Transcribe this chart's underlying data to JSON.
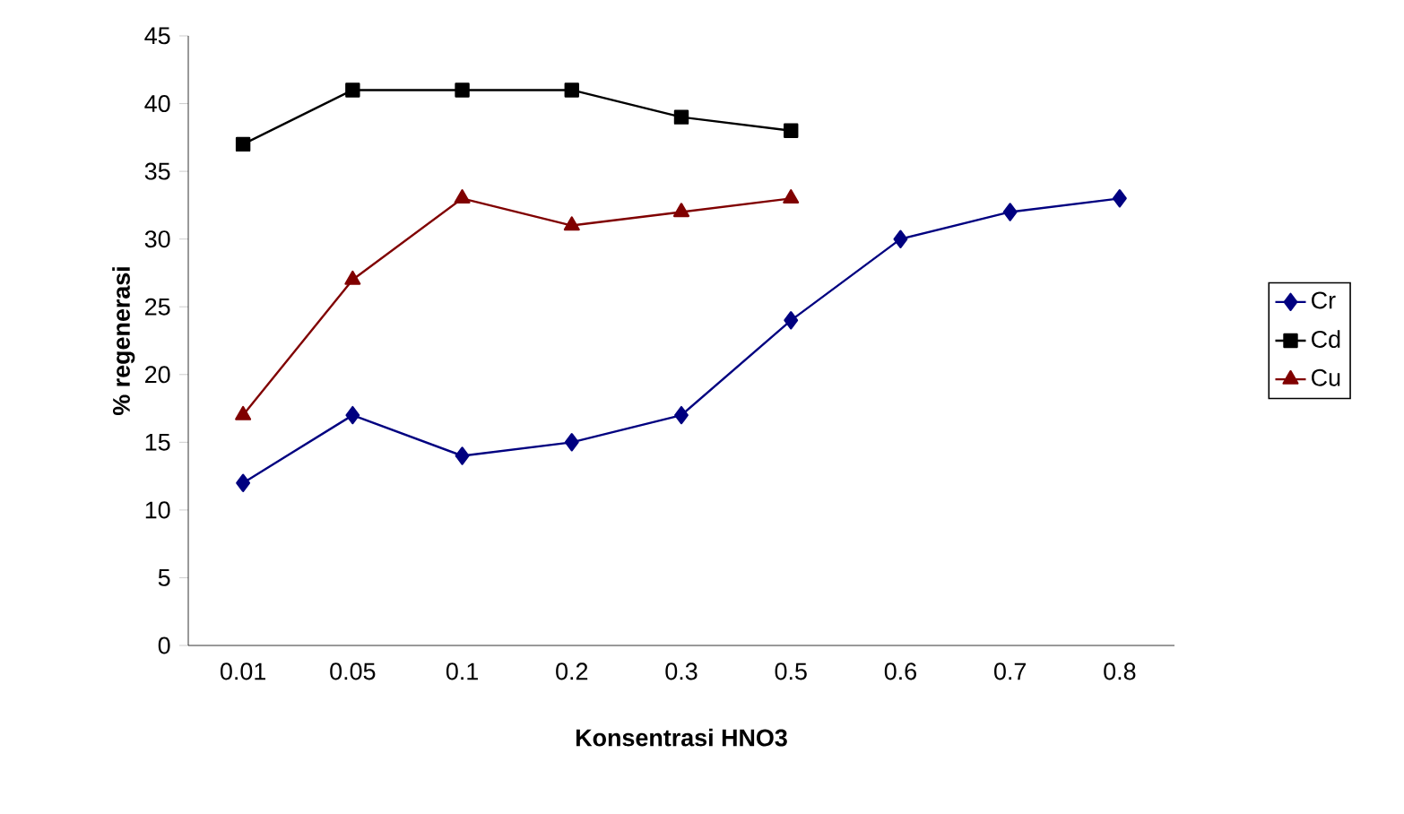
{
  "chart_data": {
    "type": "line",
    "xlabel": "Konsentrasi HNO3",
    "ylabel": "% regenerasi",
    "categories": [
      "0.01",
      "0.05",
      "0.1",
      "0.2",
      "0.3",
      "0.5",
      "0.6",
      "0.7",
      "0.8"
    ],
    "series": [
      {
        "name": "Cr",
        "color": "#000080",
        "marker": "diamond",
        "values": [
          12,
          17,
          14,
          15,
          17,
          24,
          30,
          32,
          33
        ]
      },
      {
        "name": "Cd",
        "color": "#000000",
        "marker": "square",
        "values": [
          37,
          41,
          41,
          41,
          39,
          38,
          null,
          null,
          null
        ]
      },
      {
        "name": "Cu",
        "color": "#800000",
        "marker": "triangle",
        "values": [
          17,
          27,
          33,
          31,
          32,
          33,
          null,
          null,
          null
        ]
      }
    ],
    "ylim": [
      0,
      45
    ],
    "yticks": [
      0,
      5,
      10,
      15,
      20,
      25,
      30,
      35,
      40,
      45
    ],
    "grid": false,
    "legend": "right",
    "line_style": "solid"
  }
}
